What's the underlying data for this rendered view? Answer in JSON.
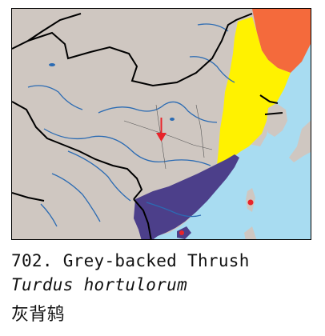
{
  "caption": {
    "line1": "702. Grey-backed Thrush",
    "line2": "Turdus hortulorum",
    "line3": "灰背鸫"
  },
  "colors": {
    "sea": "#a8dcf1",
    "land": "#cfc7c1",
    "breeding_range": "#f46a3c",
    "migration_range": "#fff200",
    "wintering_range": "#4c3f8a",
    "resident_spots": "#e8242a",
    "rivers": "#2b6bb3",
    "borders": "#000000"
  },
  "legend_icons": {
    "arrow": "red-down-arrow-icon"
  }
}
